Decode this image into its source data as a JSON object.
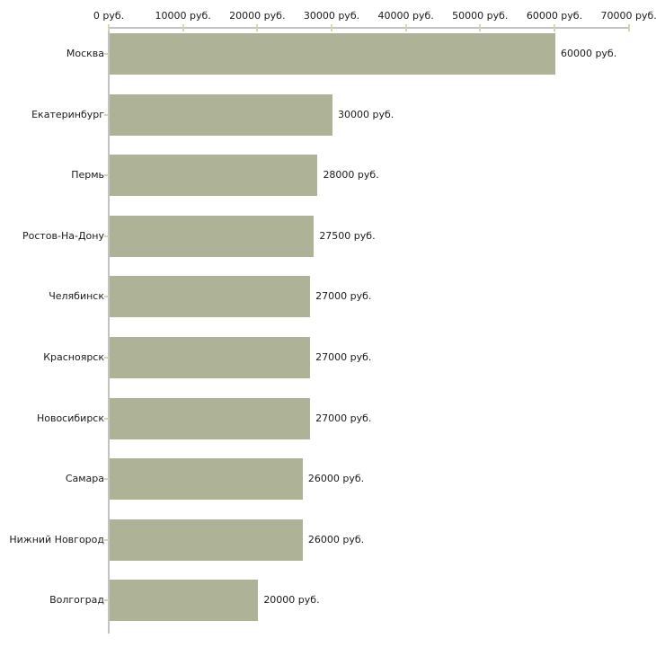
{
  "chart_data": {
    "type": "bar",
    "orientation": "horizontal",
    "categories": [
      "Москва",
      "Екатеринбург",
      "Пермь",
      "Ростов-На-Дону",
      "Челябинск",
      "Красноярск",
      "Новосибирск",
      "Самара",
      "Нижний Новгород",
      "Волгоград"
    ],
    "values": [
      60000,
      30000,
      28000,
      27500,
      27000,
      27000,
      27000,
      26000,
      26000,
      20000
    ],
    "value_labels": [
      "60000 руб.",
      "30000 руб.",
      "28000 руб.",
      "27500 руб.",
      "27000 руб.",
      "27000 руб.",
      "27000 руб.",
      "26000 руб.",
      "26000 руб.",
      "20000 руб."
    ],
    "x_ticks": [
      0,
      10000,
      20000,
      30000,
      40000,
      50000,
      60000,
      70000
    ],
    "x_tick_labels": [
      "0 руб.",
      "10000 руб.",
      "20000 руб.",
      "30000 руб.",
      "40000 руб.",
      "50000 руб.",
      "60000 руб.",
      "70000 руб."
    ],
    "xlim": [
      0,
      70000
    ],
    "unit": "руб.",
    "grid": false,
    "legend": null
  },
  "colors": {
    "bar": "#aeb296",
    "axis_line": "#c3c3c3",
    "tick": "#d6d6ad",
    "text": "#1a1a1a",
    "background": "#ffffff"
  }
}
